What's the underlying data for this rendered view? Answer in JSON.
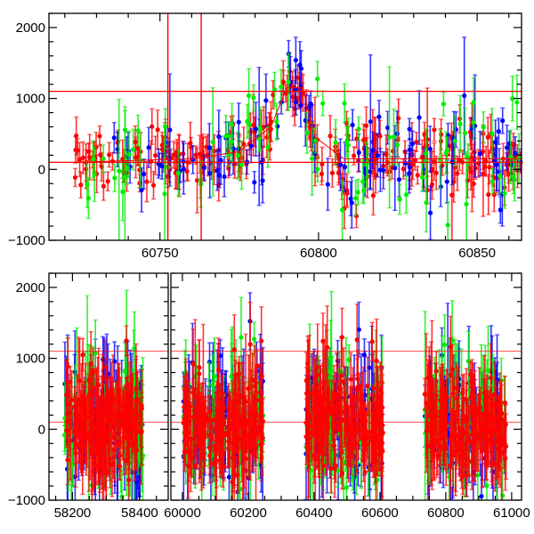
{
  "chart_data": [
    {
      "type": "scatter",
      "panel": "top",
      "title": "",
      "xlabel": "",
      "ylabel": "",
      "xlim": [
        60715,
        60864
      ],
      "ylim": [
        -1000,
        2200
      ],
      "x_ticks": [
        60750,
        60800,
        60850
      ],
      "x_tick_labels": [
        "60750",
        "60800",
        "60850"
      ],
      "y_ticks": [
        -1000,
        0,
        1000,
        2000
      ],
      "y_tick_labels": [
        "−1000",
        "0",
        "1000",
        "2000"
      ],
      "hlines": [
        1100,
        100
      ],
      "vlines": [
        60752.5,
        60763
      ],
      "trend": [
        [
          60723,
          100
        ],
        [
          60760,
          150
        ],
        [
          60775,
          250
        ],
        [
          60785,
          600
        ],
        [
          60790,
          1150
        ],
        [
          60795,
          1150
        ],
        [
          60799,
          450
        ],
        [
          60808,
          150
        ],
        [
          60864,
          150
        ]
      ],
      "series": [
        {
          "name": "red",
          "color": "#ff0000",
          "count": 260,
          "x_range": [
            60723,
            60864
          ],
          "scatter": 220,
          "err": [
            120,
            300
          ]
        },
        {
          "name": "blue",
          "color": "#0000ff",
          "count": 110,
          "x_range": [
            60735,
            60864
          ],
          "scatter": 330,
          "err": [
            150,
            380
          ]
        },
        {
          "name": "green",
          "color": "#00ee00",
          "count": 90,
          "x_range": [
            60727,
            60864
          ],
          "scatter": 380,
          "err": [
            150,
            420
          ]
        }
      ]
    },
    {
      "type": "scatter",
      "panel": "bottom",
      "title": "",
      "xlabel": "",
      "ylabel": "",
      "broken_axis": true,
      "segments": [
        {
          "xlim": [
            58130,
            58485
          ],
          "x_ticks": [
            58200,
            58400
          ],
          "x_tick_labels": [
            "58200",
            "58400"
          ]
        },
        {
          "xlim": [
            59965,
            61030
          ],
          "x_ticks": [
            60000,
            60200,
            60400,
            60600,
            60800,
            61000
          ],
          "x_tick_labels": [
            "60000",
            "60200",
            "60400",
            "60600",
            "60800",
            "61000"
          ]
        }
      ],
      "ylim": [
        -1000,
        2200
      ],
      "y_ticks": [
        -1000,
        0,
        1000,
        2000
      ],
      "y_tick_labels": [
        "−1000",
        "0",
        "1000",
        "2000"
      ],
      "hlines": [
        1100,
        100
      ],
      "seasons": [
        {
          "segment": 0,
          "x_range": [
            58176,
            58410
          ]
        },
        {
          "segment": 1,
          "x_range": [
            60003,
            60245
          ]
        },
        {
          "segment": 1,
          "x_range": [
            60375,
            60610
          ]
        },
        {
          "segment": 1,
          "x_range": [
            60735,
            60985
          ]
        }
      ],
      "series": [
        {
          "name": "blue",
          "color": "#0000ff",
          "count_per_season": 90,
          "scatter": 380,
          "err": [
            200,
            650
          ]
        },
        {
          "name": "green",
          "color": "#00ee00",
          "count_per_season": 70,
          "scatter": 420,
          "err": [
            200,
            700
          ]
        },
        {
          "name": "red",
          "color": "#ff0000",
          "count_per_season": 180,
          "scatter": 300,
          "err": [
            180,
            600
          ]
        }
      ]
    }
  ]
}
